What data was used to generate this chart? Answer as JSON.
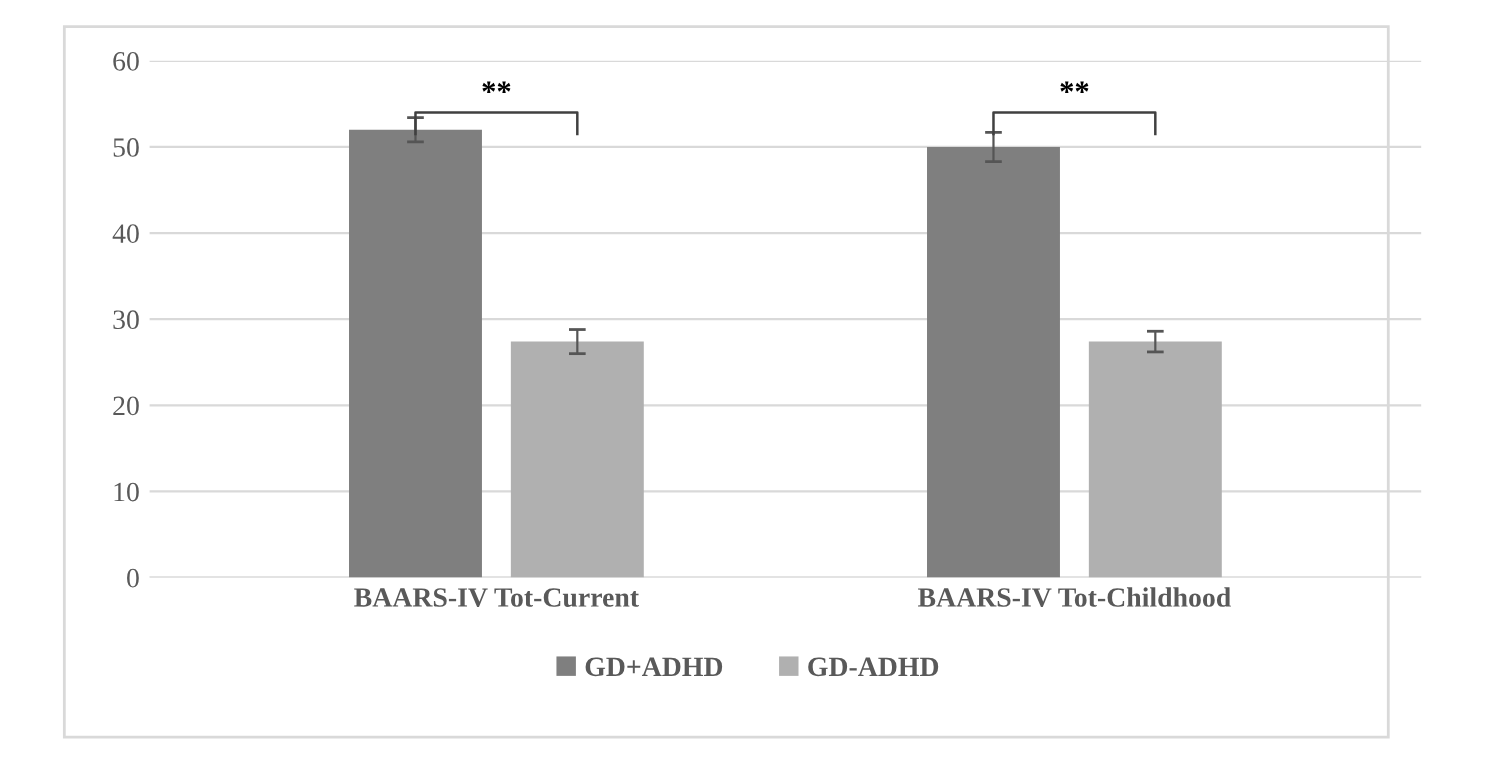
{
  "chart_data": {
    "type": "bar",
    "categories": [
      "BAARS-IV Tot-Current",
      "BAARS-IV Tot-Childhood"
    ],
    "series": [
      {
        "name": "GD+ADHD",
        "color": "#7f7f7f",
        "values": [
          52,
          50
        ],
        "errors": [
          1.4,
          1.7
        ]
      },
      {
        "name": "GD-ADHD",
        "color": "#b0b0b0",
        "values": [
          27.4,
          27.4
        ],
        "errors": [
          1.4,
          1.2
        ]
      }
    ],
    "ylim": [
      0,
      60
    ],
    "yticks": [
      0,
      10,
      20,
      30,
      40,
      50,
      60
    ],
    "grid": "y",
    "legend": "bottom",
    "annotations": [
      "**",
      "**"
    ]
  }
}
